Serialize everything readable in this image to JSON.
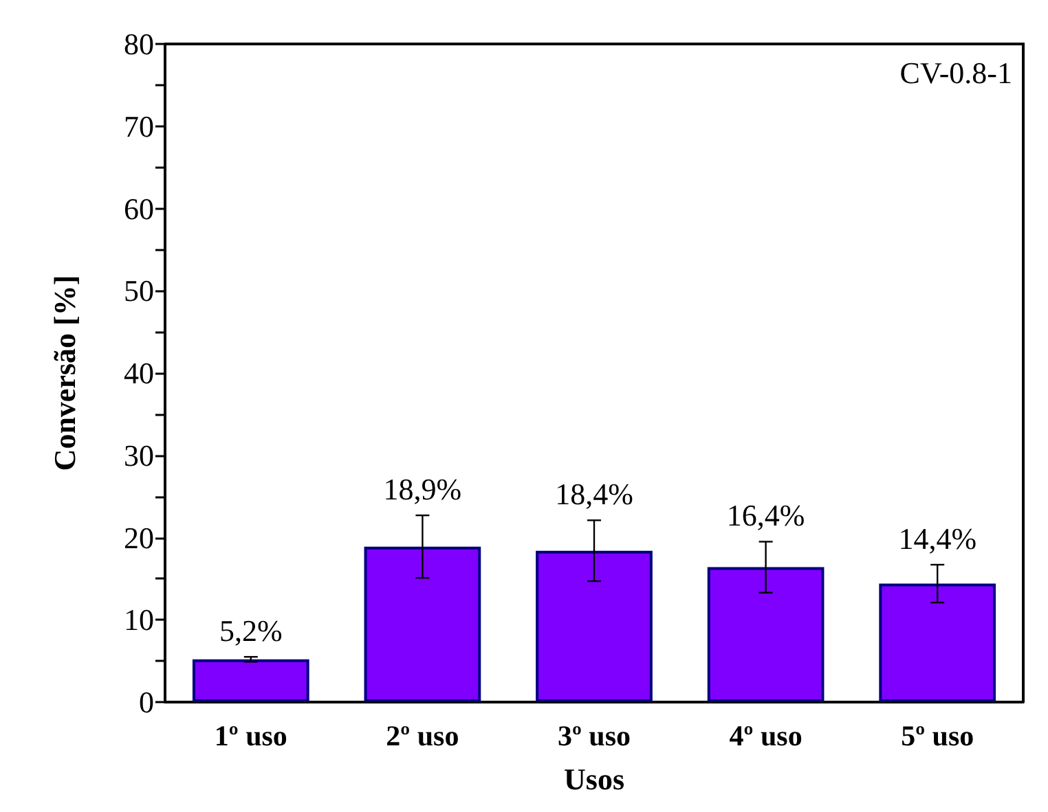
{
  "chart_data": {
    "type": "bar",
    "xlabel": "Usos",
    "ylabel": "Conversão [%]",
    "categories": [
      "1º uso",
      "2º uso",
      "3º uso",
      "4º uso",
      "5º uso"
    ],
    "values": [
      5.2,
      18.9,
      18.4,
      16.4,
      14.4
    ],
    "errors": [
      0.3,
      3.8,
      3.7,
      3.1,
      2.3
    ],
    "value_labels": [
      "5,2%",
      "18,9%",
      "18,4%",
      "16,4%",
      "14,4%"
    ],
    "color": "#7f00ff",
    "ylim": [
      0,
      80
    ],
    "yticks": [
      0,
      {
        "value": 5,
        "label": null
      },
      10,
      {
        "value": 15,
        "label": null
      },
      20,
      {
        "value": 25,
        "label": null
      },
      30,
      {
        "value": 35,
        "label": null
      },
      40,
      {
        "value": 45,
        "label": null
      },
      50,
      {
        "value": 55,
        "label": null
      },
      60,
      {
        "value": 65,
        "label": null
      },
      70,
      {
        "value": 75,
        "label": null
      },
      80
    ],
    "annotations": [
      "CV-0.8-1"
    ]
  }
}
